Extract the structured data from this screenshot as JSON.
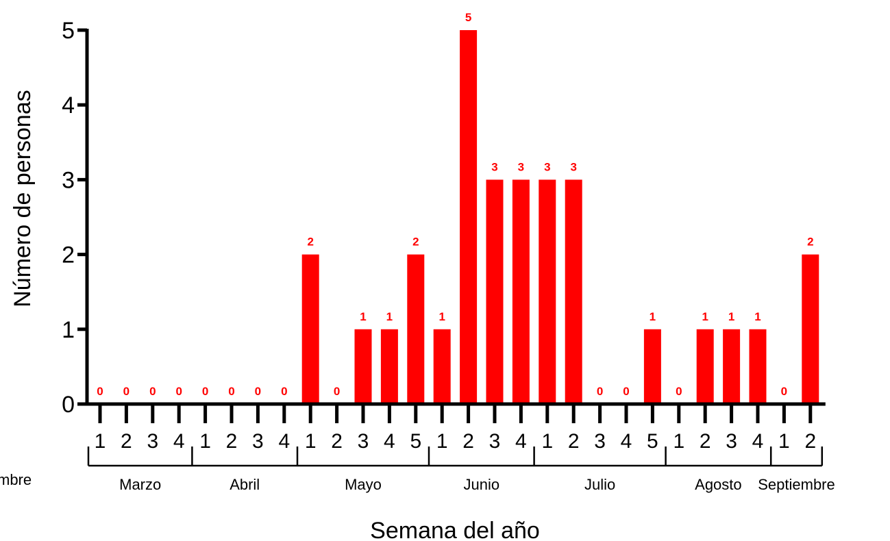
{
  "chart_data": {
    "type": "bar",
    "title": "",
    "xlabel": "Semana del año",
    "ylabel": "Número de personas",
    "ylim": [
      0,
      5
    ],
    "yticks": [
      "0",
      "1",
      "2",
      "3",
      "4",
      "5"
    ],
    "grid": false,
    "bar_color": "#ff0000",
    "label_color": "#ff0000",
    "categories": [
      "1",
      "2",
      "3",
      "4",
      "1",
      "2",
      "3",
      "4",
      "1",
      "2",
      "3",
      "4",
      "5",
      "1",
      "2",
      "3",
      "4",
      "1",
      "2",
      "3",
      "4",
      "5",
      "1",
      "2",
      "3",
      "4",
      "1",
      "2"
    ],
    "values": [
      0,
      0,
      0,
      0,
      0,
      0,
      0,
      0,
      2,
      0,
      1,
      1,
      2,
      1,
      5,
      3,
      3,
      3,
      3,
      0,
      0,
      1,
      0,
      1,
      1,
      1,
      0,
      2
    ],
    "data_labels": [
      "0",
      "0",
      "0",
      "0",
      "0",
      "0",
      "0",
      "0",
      "2",
      "0",
      "1",
      "1",
      "2",
      "1",
      "5",
      "3",
      "3",
      "3",
      "3",
      "0",
      "0",
      "1",
      "0",
      "1",
      "1",
      "1",
      "0",
      "2"
    ],
    "months": [
      {
        "name": "Marzo",
        "weeks": 4
      },
      {
        "name": "Abril",
        "weeks": 4
      },
      {
        "name": "Mayo",
        "weeks": 5
      },
      {
        "name": "Junio",
        "weeks": 4
      },
      {
        "name": "Julio",
        "weeks": 5
      },
      {
        "name": "Agosto",
        "weeks": 4
      },
      {
        "name": "Septiembre",
        "weeks": 2
      }
    ],
    "cut_off_left_label": "mbre"
  }
}
